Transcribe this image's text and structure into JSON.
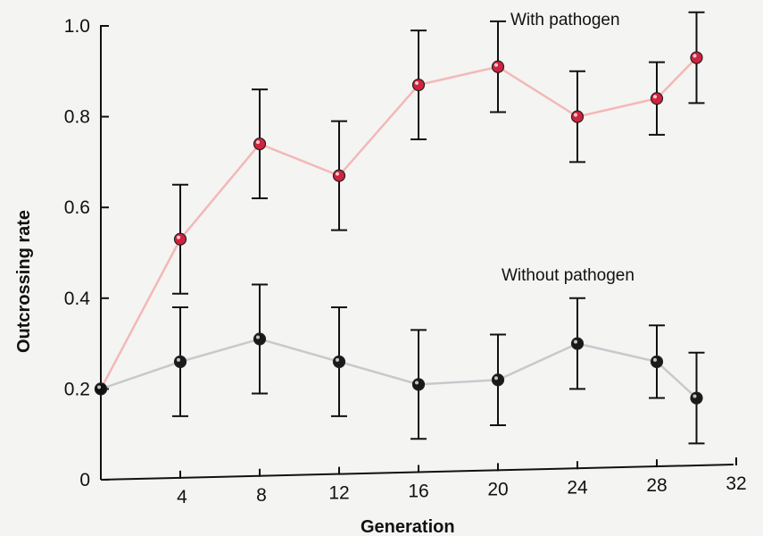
{
  "chart_data": {
    "type": "line",
    "xlabel": "Generation",
    "ylabel": "Outcrossing rate",
    "xlim": [
      0,
      32
    ],
    "ylim": [
      0,
      1.0
    ],
    "x_ticks": [
      4,
      8,
      12,
      16,
      20,
      24,
      28,
      32
    ],
    "x_tick_labels": [
      "4",
      "8",
      "12",
      "16",
      "20",
      "24",
      "28",
      "32"
    ],
    "y_ticks": [
      0,
      0.2,
      0.4,
      0.6,
      0.8,
      1.0
    ],
    "y_tick_labels": [
      "0",
      "0.2",
      "0.4",
      "0.6",
      "0.8",
      "1.0"
    ],
    "series": [
      {
        "name": "With pathogen",
        "color": "#d0233f",
        "line_color": "#f3b8b8",
        "x": [
          0,
          4,
          8,
          12,
          16,
          20,
          24,
          28,
          30
        ],
        "y": [
          0.2,
          0.53,
          0.74,
          0.67,
          0.87,
          0.91,
          0.8,
          0.84,
          0.93
        ],
        "err_low": [
          0.2,
          0.41,
          0.62,
          0.55,
          0.75,
          0.81,
          0.7,
          0.76,
          0.83
        ],
        "err_high": [
          0.2,
          0.65,
          0.86,
          0.79,
          0.99,
          1.01,
          0.9,
          0.92,
          1.03
        ]
      },
      {
        "name": "Without pathogen",
        "color": "#1a1a1a",
        "line_color": "#c7c9cc",
        "x": [
          0,
          4,
          8,
          12,
          16,
          20,
          24,
          28,
          30
        ],
        "y": [
          0.2,
          0.26,
          0.31,
          0.26,
          0.21,
          0.22,
          0.3,
          0.26,
          0.18
        ],
        "err_low": [
          0.2,
          0.14,
          0.19,
          0.14,
          0.09,
          0.12,
          0.2,
          0.18,
          0.08
        ],
        "err_high": [
          0.2,
          0.38,
          0.43,
          0.38,
          0.33,
          0.32,
          0.4,
          0.34,
          0.28
        ]
      }
    ]
  }
}
